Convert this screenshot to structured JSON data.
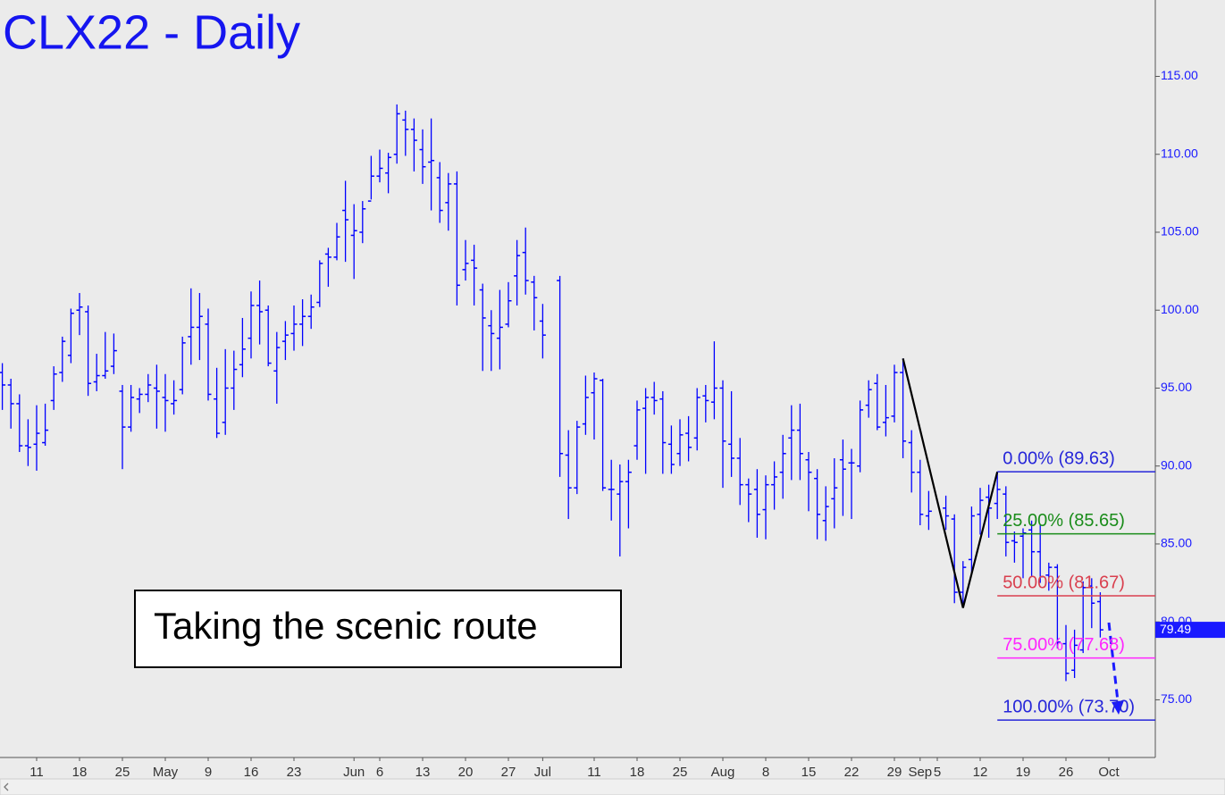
{
  "chart_data": {
    "type": "ohlc",
    "title": "CLX22 - Daily",
    "annotation": "Taking the scenic route",
    "color": "#0000ff",
    "ylim": [
      71.3,
      119.9
    ],
    "yticks": [
      {
        "value": 75,
        "label": "75.00"
      },
      {
        "value": 80,
        "label": "80.00"
      },
      {
        "value": 85,
        "label": "85.00"
      },
      {
        "value": 90,
        "label": "90.00"
      },
      {
        "value": 95,
        "label": "95.00"
      },
      {
        "value": 100,
        "label": "100.00"
      },
      {
        "value": 105,
        "label": "105.00"
      },
      {
        "value": 110,
        "label": "110.00"
      },
      {
        "value": 115,
        "label": "115.00"
      }
    ],
    "grid": false,
    "last_price": 79.49,
    "categories": [
      null,
      null,
      null,
      null,
      "11",
      null,
      null,
      null,
      null,
      "18",
      null,
      null,
      null,
      null,
      "25",
      null,
      null,
      null,
      null,
      "May",
      null,
      null,
      null,
      null,
      "9",
      null,
      null,
      null,
      null,
      "16",
      null,
      null,
      null,
      null,
      "23",
      null,
      null,
      null,
      null,
      null,
      null,
      "Jun",
      null,
      null,
      "6",
      null,
      null,
      null,
      null,
      "13",
      null,
      null,
      null,
      null,
      "20",
      null,
      null,
      null,
      null,
      "27",
      null,
      null,
      null,
      "Jul",
      null,
      null,
      null,
      null,
      null,
      "11",
      null,
      null,
      null,
      null,
      "18",
      null,
      null,
      null,
      null,
      "25",
      null,
      null,
      null,
      null,
      "Aug",
      null,
      null,
      null,
      null,
      "8",
      null,
      null,
      null,
      null,
      "15",
      null,
      null,
      null,
      null,
      "22",
      null,
      null,
      null,
      null,
      "29",
      null,
      null,
      "Sep",
      null,
      "5",
      null,
      null,
      null,
      null,
      "12",
      null,
      null,
      null,
      null,
      "19",
      null,
      null,
      null,
      null,
      "26",
      null,
      null,
      null,
      null,
      "Oct"
    ],
    "values": [
      [
        96.0,
        96.6,
        93.6,
        95.2
      ],
      [
        95.2,
        95.6,
        92.4,
        94.0
      ],
      [
        94.0,
        94.6,
        90.9,
        91.3
      ],
      [
        91.3,
        93.0,
        90.0,
        91.2
      ],
      [
        91.4,
        93.9,
        89.7,
        92.1
      ],
      [
        91.5,
        94.0,
        91.3,
        92.3
      ],
      [
        94.2,
        96.4,
        93.6,
        95.9
      ],
      [
        96.0,
        98.3,
        95.4,
        98.0
      ],
      [
        97.1,
        100.1,
        96.6,
        99.8
      ],
      [
        100.0,
        101.1,
        98.4,
        100.2
      ],
      [
        99.9,
        100.3,
        94.5,
        95.3
      ],
      [
        95.4,
        97.2,
        94.8,
        95.8
      ],
      [
        95.8,
        98.6,
        95.6,
        96.1
      ],
      [
        96.4,
        98.5,
        95.9,
        97.4
      ],
      [
        94.8,
        95.2,
        89.8,
        92.5
      ],
      [
        92.5,
        95.2,
        92.2,
        94.4
      ],
      [
        94.3,
        95.0,
        93.4,
        94.6
      ],
      [
        94.6,
        95.9,
        94.1,
        95.2
      ],
      [
        95.0,
        96.5,
        92.4,
        94.8
      ],
      [
        94.4,
        95.9,
        92.2,
        94.2
      ],
      [
        94.0,
        95.5,
        93.3,
        94.2
      ],
      [
        94.9,
        98.3,
        94.6,
        97.9
      ],
      [
        98.3,
        101.4,
        96.5,
        98.9
      ],
      [
        98.9,
        101.1,
        96.8,
        99.6
      ],
      [
        99.1,
        100.1,
        94.2,
        94.6
      ],
      [
        94.3,
        96.3,
        91.8,
        92.1
      ],
      [
        92.8,
        97.5,
        92.0,
        95.0
      ],
      [
        95.0,
        97.4,
        93.6,
        96.2
      ],
      [
        96.5,
        99.5,
        95.7,
        97.5
      ],
      [
        98.2,
        101.2,
        96.9,
        100.3
      ],
      [
        100.3,
        101.9,
        97.8,
        99.9
      ],
      [
        100.0,
        100.3,
        96.4,
        96.6
      ],
      [
        96.1,
        98.6,
        94.0,
        97.6
      ],
      [
        98.0,
        99.3,
        96.8,
        98.4
      ],
      [
        98.5,
        100.3,
        97.4,
        99.1
      ],
      [
        99.1,
        100.7,
        97.7,
        99.6
      ],
      [
        99.6,
        101.0,
        98.8,
        100.2
      ],
      [
        100.5,
        103.2,
        100.2,
        103.0
      ],
      [
        103.6,
        104.0,
        101.5,
        103.4
      ],
      [
        103.4,
        105.6,
        103.2,
        104.7
      ],
      [
        106.4,
        108.3,
        103.1,
        105.8
      ],
      [
        104.8,
        106.8,
        102.0,
        105.1
      ],
      [
        105.0,
        107.0,
        104.3,
        106.5
      ],
      [
        107.0,
        109.9,
        107.1,
        108.6
      ],
      [
        108.6,
        110.3,
        108.2,
        109.1
      ],
      [
        108.8,
        110.1,
        107.5,
        109.8
      ],
      [
        110.0,
        113.2,
        109.4,
        112.6
      ],
      [
        112.2,
        112.8,
        109.9,
        111.6
      ],
      [
        111.6,
        112.3,
        108.9,
        110.9
      ],
      [
        110.3,
        111.6,
        108.1,
        109.2
      ],
      [
        109.5,
        112.3,
        106.4,
        109.6
      ],
      [
        108.5,
        109.5,
        105.6,
        106.4
      ],
      [
        106.9,
        108.8,
        105.1,
        108.1
      ],
      [
        108.1,
        108.9,
        100.3,
        101.6
      ],
      [
        102.6,
        104.5,
        101.9,
        103.0
      ],
      [
        103.2,
        104.2,
        100.3,
        102.7
      ],
      [
        101.3,
        101.7,
        96.1,
        99.5
      ],
      [
        99.0,
        100.0,
        96.1,
        98.5
      ],
      [
        98.2,
        101.3,
        96.2,
        98.9
      ],
      [
        99.1,
        101.8,
        98.9,
        100.6
      ],
      [
        102.2,
        104.5,
        100.3,
        103.5
      ],
      [
        103.7,
        105.3,
        101.0,
        101.9
      ],
      [
        101.8,
        102.2,
        98.7,
        100.8
      ],
      [
        99.3,
        100.4,
        96.9,
        98.4
      ],
      null,
      [
        101.9,
        102.2,
        89.3,
        90.8
      ],
      [
        90.7,
        92.3,
        86.6,
        88.6
      ],
      [
        88.6,
        92.9,
        88.2,
        92.5
      ],
      [
        92.7,
        95.8,
        92.0,
        94.4
      ],
      [
        94.7,
        96.0,
        91.7,
        95.6
      ],
      [
        95.5,
        95.6,
        88.4,
        88.6
      ],
      [
        88.5,
        90.4,
        86.5,
        88.5
      ],
      [
        88.2,
        90.1,
        84.2,
        89.0
      ],
      [
        89.0,
        90.4,
        86.0,
        89.6
      ],
      [
        91.3,
        94.2,
        90.4,
        93.6
      ],
      [
        93.7,
        95.0,
        89.5,
        94.4
      ],
      [
        94.4,
        95.4,
        93.3,
        94.2
      ],
      [
        94.3,
        94.8,
        89.5,
        91.5
      ],
      [
        91.4,
        92.6,
        89.5,
        90.1
      ],
      [
        90.8,
        93.0,
        90.0,
        92.0
      ],
      [
        92.1,
        93.2,
        90.3,
        91.2
      ],
      [
        91.8,
        95.0,
        91.0,
        94.4
      ],
      [
        94.5,
        95.2,
        92.8,
        94.2
      ],
      [
        94.1,
        98.0,
        93.0,
        95.0
      ],
      [
        95.0,
        95.5,
        88.6,
        91.6
      ],
      [
        91.4,
        94.8,
        89.3,
        90.5
      ],
      [
        90.5,
        91.8,
        87.5,
        88.8
      ],
      [
        88.8,
        89.2,
        86.4,
        88.2
      ],
      [
        88.5,
        89.8,
        85.4,
        86.9
      ],
      [
        87.2,
        89.4,
        85.3,
        88.8
      ],
      [
        88.8,
        90.3,
        87.2,
        89.3
      ],
      [
        89.6,
        92.0,
        87.9,
        90.8
      ],
      [
        91.8,
        93.9,
        89.1,
        92.3
      ],
      [
        92.3,
        94.0,
        89.1,
        90.8
      ],
      [
        90.4,
        90.9,
        87.1,
        89.6
      ],
      [
        89.2,
        89.8,
        85.3,
        86.9
      ],
      [
        86.5,
        88.7,
        85.2,
        87.4
      ],
      [
        87.9,
        90.5,
        86.0,
        88.6
      ],
      [
        90.4,
        91.7,
        86.8,
        89.8
      ],
      [
        90.2,
        91.1,
        86.6,
        90.2
      ],
      [
        90.0,
        94.2,
        89.6,
        93.6
      ],
      [
        93.9,
        95.5,
        93.1,
        94.9
      ],
      [
        95.3,
        95.9,
        92.3,
        92.5
      ],
      [
        92.8,
        95.2,
        91.9,
        93.1
      ],
      [
        93.2,
        96.5,
        92.8,
        96.0
      ],
      [
        96.0,
        96.9,
        90.5,
        91.6
      ],
      [
        91.5,
        92.3,
        88.3,
        89.6
      ],
      [
        89.6,
        90.4,
        86.2,
        86.9
      ],
      [
        86.8,
        88.4,
        85.9,
        87.1
      ],
      null,
      [
        87.3,
        88.1,
        85.9,
        86.8
      ],
      [
        86.6,
        86.9,
        81.2,
        81.9
      ],
      [
        81.9,
        83.9,
        80.9,
        83.5
      ],
      [
        84.0,
        87.4,
        83.1,
        86.8
      ],
      [
        86.9,
        88.6,
        85.6,
        87.8
      ],
      [
        88.0,
        88.8,
        85.4,
        87.3
      ],
      [
        87.6,
        89.63,
        86.6,
        88.5
      ],
      [
        88.2,
        88.7,
        84.2,
        85.1
      ],
      [
        85.2,
        85.8,
        83.8,
        85.1
      ],
      [
        85.5,
        86.0,
        82.8,
        85.7
      ],
      [
        85.9,
        86.5,
        82.9,
        84.5
      ],
      [
        84.5,
        86.2,
        82.5,
        82.9
      ],
      [
        83.0,
        83.8,
        82.0,
        83.5
      ],
      [
        83.5,
        83.7,
        78.3,
        78.7
      ],
      [
        78.6,
        79.8,
        76.2,
        76.7
      ],
      [
        76.9,
        79.5,
        76.4,
        78.5
      ],
      [
        78.2,
        82.6,
        78.0,
        82.2
      ],
      [
        82.3,
        82.8,
        79.6,
        81.2
      ],
      [
        81.3,
        81.9,
        79.0,
        79.49
      ],
      null
    ],
    "swing": {
      "values": [
        96.9,
        80.9,
        89.63
      ],
      "color": "#000000"
    },
    "fib_levels": [
      {
        "label": "0.00% (89.63)",
        "value": 89.63,
        "color": "#2626d9"
      },
      {
        "label": "25.00% (85.65)",
        "value": 85.65,
        "color": "#1a8c1a"
      },
      {
        "label": "50.00% (81.67)",
        "value": 81.67,
        "color": "#d9404f"
      },
      {
        "label": "75.00% (77.68)",
        "value": 77.68,
        "color": "#ff26ff"
      },
      {
        "label": "100.00% (73.70)",
        "value": 73.7,
        "color": "#2626d9"
      }
    ]
  }
}
